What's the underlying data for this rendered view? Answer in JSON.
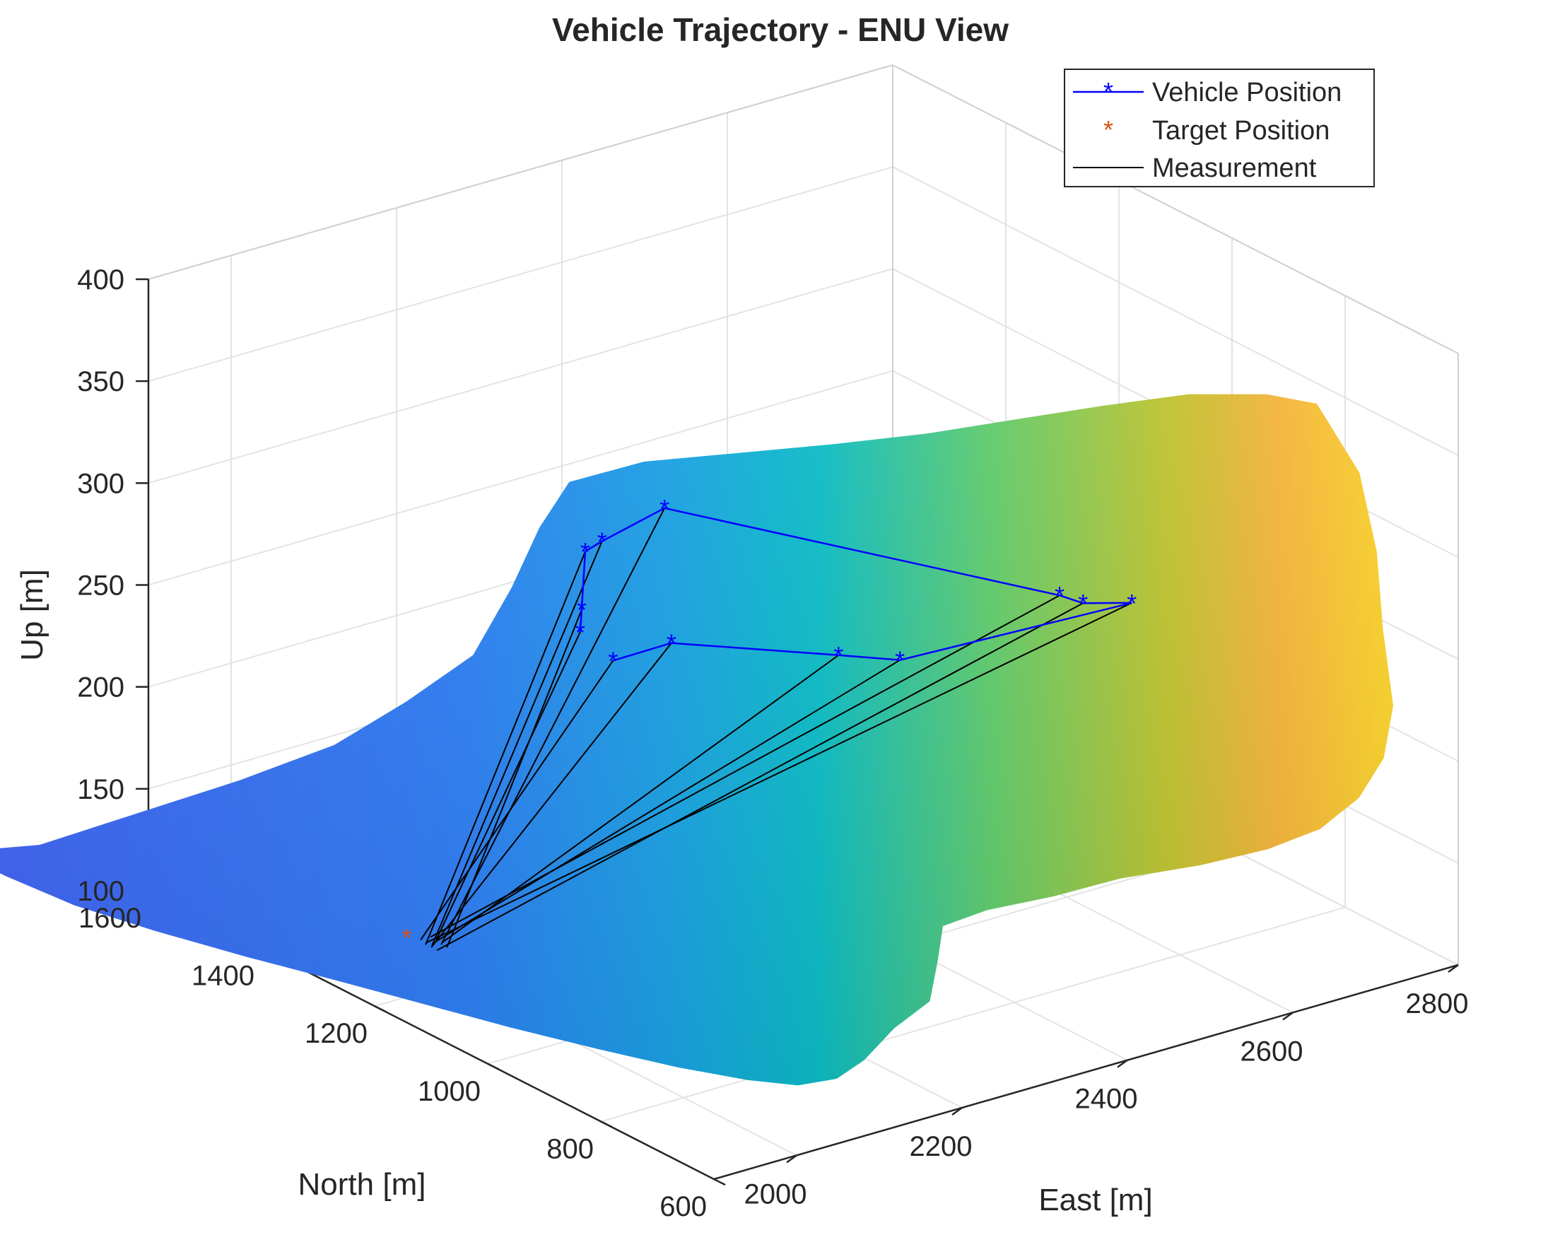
{
  "chart_data": {
    "type": "surface3d",
    "title": "Vehicle Trajectory - ENU View",
    "xlabel": "East [m]",
    "ylabel": "North [m]",
    "zlabel": "Up [m]",
    "xlim": [
      1900,
      2800
    ],
    "ylim": [
      600,
      1600
    ],
    "zlim": [
      100,
      400
    ],
    "xticks": [
      "2000",
      "2200",
      "2400",
      "2600",
      "2800"
    ],
    "yticks": [
      "600",
      "800",
      "1000",
      "1200",
      "1400",
      "1600"
    ],
    "zticks": [
      "100",
      "150",
      "200",
      "250",
      "300",
      "350",
      "400"
    ],
    "grid": true,
    "colormap": [
      "#3e26a8",
      "#4467f8",
      "#2a9af0",
      "#12bfb9",
      "#69cc60",
      "#c8c12c",
      "#f9be3a",
      "#f9e31f"
    ],
    "legend": {
      "position": "top-right",
      "entries": [
        {
          "label": "Vehicle Position",
          "color": "#0000ff",
          "marker": "*",
          "line": "solid"
        },
        {
          "label": "Target Position",
          "color": "#d95319",
          "marker": "*",
          "line": "none"
        },
        {
          "label": "Measurement",
          "color": "#000000",
          "marker": "none",
          "line": "solid"
        }
      ]
    },
    "series": [
      {
        "name": "Vehicle Position",
        "color": "#0000ff",
        "points": [
          {
            "x": 2120,
            "y": 1100,
            "z": 258
          },
          {
            "x": 2170,
            "y": 1070,
            "z": 265
          },
          {
            "x": 2290,
            "y": 950,
            "z": 262
          },
          {
            "x": 2330,
            "y": 900,
            "z": 262
          },
          {
            "x": 2525,
            "y": 775,
            "z": 285
          },
          {
            "x": 2490,
            "y": 810,
            "z": 284
          },
          {
            "x": 2465,
            "y": 815,
            "z": 290
          },
          {
            "x": 2230,
            "y": 1170,
            "z": 310
          },
          {
            "x": 2175,
            "y": 1200,
            "z": 296
          },
          {
            "x": 2165,
            "y": 1215,
            "z": 290
          },
          {
            "x": 2070,
            "y": 1085,
            "z": 280
          },
          {
            "x": 2065,
            "y": 1075,
            "z": 293
          }
        ]
      },
      {
        "name": "Target Position",
        "color": "#d95319",
        "points": [
          {
            "x": 1850,
            "y": 1070,
            "z": 158
          }
        ]
      },
      {
        "name": "Measurement",
        "color": "#000000",
        "from": {
          "x": 1860,
          "y": 1060,
          "z": 157
        },
        "to": "each Vehicle Position"
      }
    ]
  }
}
